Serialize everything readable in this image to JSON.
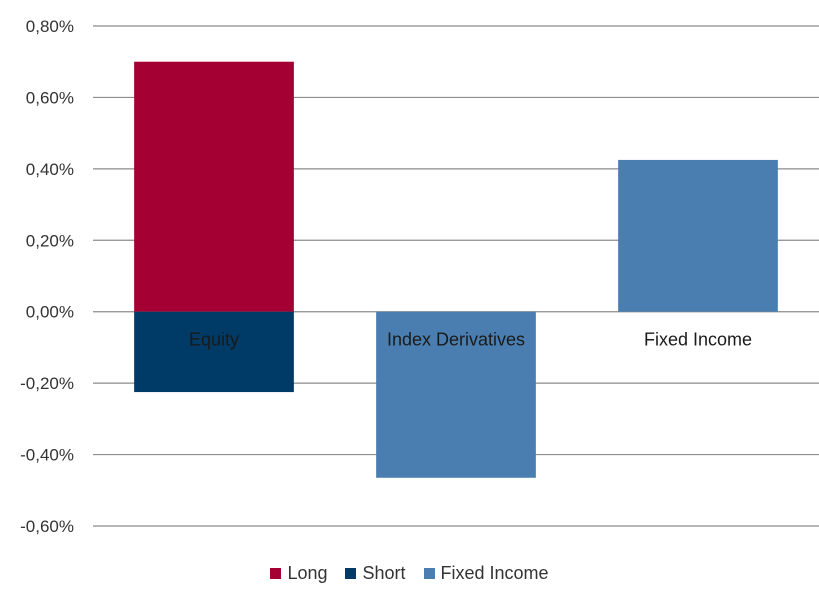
{
  "chart_data": {
    "type": "bar",
    "stacked": true,
    "categories": [
      "Equity",
      "Index Derivatives",
      "Fixed Income"
    ],
    "series": [
      {
        "name": "Long",
        "color": "#A50034",
        "values": [
          0.7,
          0,
          0
        ]
      },
      {
        "name": "Short",
        "color": "#003A66",
        "values": [
          -0.225,
          0,
          0
        ]
      },
      {
        "name": "Fixed Income",
        "color": "#4A7EB0",
        "values": [
          0,
          -0.465,
          0.425
        ]
      }
    ],
    "unit": "%",
    "ylim": [
      -0.6,
      0.8
    ],
    "yticks": [
      0.8,
      0.6,
      0.4,
      0.2,
      0.0,
      -0.2,
      -0.4,
      -0.6
    ],
    "ytick_labels": [
      "0,80%",
      "0,60%",
      "0,40%",
      "0,20%",
      "0,00%",
      "-0,20%",
      "-0,40%",
      "-0,60%"
    ],
    "grid": true,
    "legend_position": "bottom",
    "title": "",
    "xlabel": "",
    "ylabel": ""
  }
}
